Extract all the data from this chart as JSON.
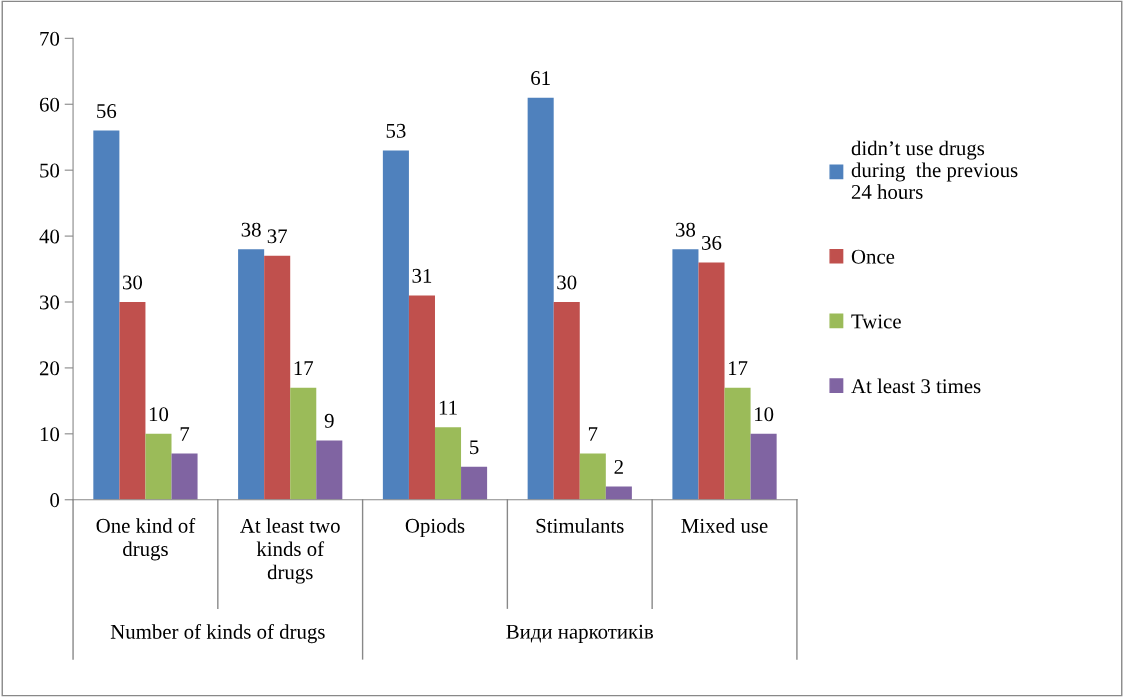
{
  "chart_data": {
    "type": "bar",
    "categories": [
      "One kind of\ndrugs",
      "At least two\nkinds of\ndrugs",
      "Opiods",
      "Stimulants",
      "Mixed use"
    ],
    "series": [
      {
        "name": "didn’t use drugs\nduring  the previous\n24 hours",
        "color": "#4f81bd",
        "values": [
          56,
          38,
          53,
          61,
          38
        ]
      },
      {
        "name": "Once",
        "color": "#c0504d",
        "values": [
          30,
          37,
          31,
          30,
          36
        ]
      },
      {
        "name": "Twice",
        "color": "#9bbb59",
        "values": [
          10,
          17,
          11,
          7,
          17
        ]
      },
      {
        "name": "At least 3 times",
        "color": "#8064a2",
        "values": [
          7,
          9,
          5,
          2,
          10
        ]
      }
    ],
    "annotations": [
      "Number of kinds of drugs",
      "Види наркотиків"
    ],
    "ylim": [
      0,
      70
    ],
    "yticks": [
      0,
      10,
      20,
      30,
      40,
      50,
      60,
      70
    ],
    "data_labels": true,
    "grid": false,
    "legend": "right"
  }
}
